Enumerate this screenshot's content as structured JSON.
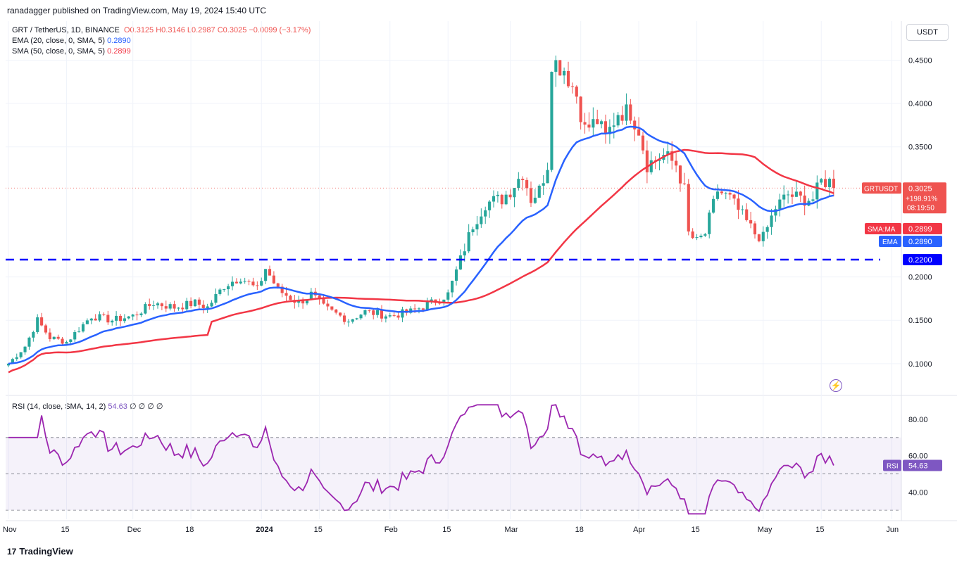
{
  "header": {
    "published": "ranadagger published on TradingView.com, May 19, 2024 15:40 UTC"
  },
  "legend": {
    "symbol": "GRT / TetherUS, 1D, BINANCE",
    "open": "O0.3125",
    "high": "H0.3146",
    "low": "L0.2987",
    "close": "C0.3025",
    "change": "−0.0099 (−3.17%)",
    "ema_label": "EMA (20, close, 0, SMA, 5)",
    "ema_value": "0.2890",
    "sma_label": "SMA (50, close, 0, SMA, 5)",
    "sma_value": "0.2899"
  },
  "rsi_legend": {
    "label": "RSI (14, close, SMA, 14, 2)",
    "value": "54.63",
    "extra": "∅ ∅ ∅ ∅"
  },
  "currency": "USDT",
  "footer": {
    "brand": "TradingView",
    "logo_mark": "17"
  },
  "colors": {
    "up": "#26a69a",
    "down": "#ef5350",
    "ema": "#2962ff",
    "sma": "#f23645",
    "rsi": "#9c27b0",
    "hline": "#0000ff"
  },
  "tags": {
    "symbol": "GRTUSDT",
    "price": "0.3025",
    "pct": "+198.91%",
    "countdown": "08:19:50",
    "smama": "SMA:MA",
    "smama_value": "0.2899",
    "ema": "EMA",
    "ema_value": "0.2890",
    "hline_value": "0.2200",
    "rsi": "RSI",
    "rsi_value": "54.63"
  },
  "chart_data": [
    {
      "type": "candlestick",
      "title": "GRT / TetherUS, 1D, BINANCE",
      "ylim": [
        0.065,
        0.495
      ],
      "y_ticks": [
        0.45,
        0.4,
        0.35,
        0.2,
        0.15,
        0.1
      ],
      "y_tick_labels": [
        "0.4500",
        "0.4000",
        "0.3500",
        "0.2000",
        "0.1500",
        "0.1000"
      ],
      "x_ticks": [
        {
          "day": 0,
          "label": "Nov"
        },
        {
          "day": 14,
          "label": "15"
        },
        {
          "day": 30,
          "label": "Dec"
        },
        {
          "day": 44,
          "label": "18"
        },
        {
          "day": 61,
          "label": "2024"
        },
        {
          "day": 75,
          "label": "15"
        },
        {
          "day": 92,
          "label": "Feb"
        },
        {
          "day": 106,
          "label": "15"
        },
        {
          "day": 121,
          "label": "Mar"
        },
        {
          "day": 138,
          "label": "18"
        },
        {
          "day": 152,
          "label": "Apr"
        },
        {
          "day": 166,
          "label": "15"
        },
        {
          "day": 182,
          "label": "May"
        },
        {
          "day": 196,
          "label": "15"
        },
        {
          "day": 213,
          "label": "Jun"
        }
      ],
      "days": 200,
      "support_level": 0.22,
      "close_anchors": [
        [
          0,
          0.1
        ],
        [
          4,
          0.12
        ],
        [
          7,
          0.15
        ],
        [
          10,
          0.13
        ],
        [
          14,
          0.125
        ],
        [
          17,
          0.14
        ],
        [
          20,
          0.155
        ],
        [
          25,
          0.15
        ],
        [
          30,
          0.155
        ],
        [
          35,
          0.17
        ],
        [
          40,
          0.165
        ],
        [
          45,
          0.17
        ],
        [
          48,
          0.165
        ],
        [
          52,
          0.19
        ],
        [
          56,
          0.2
        ],
        [
          60,
          0.185
        ],
        [
          62,
          0.21
        ],
        [
          65,
          0.185
        ],
        [
          70,
          0.17
        ],
        [
          73,
          0.18
        ],
        [
          76,
          0.165
        ],
        [
          82,
          0.15
        ],
        [
          86,
          0.16
        ],
        [
          92,
          0.155
        ],
        [
          97,
          0.16
        ],
        [
          102,
          0.17
        ],
        [
          106,
          0.18
        ],
        [
          109,
          0.22
        ],
        [
          112,
          0.26
        ],
        [
          115,
          0.285
        ],
        [
          119,
          0.29
        ],
        [
          121,
          0.3
        ],
        [
          124,
          0.32
        ],
        [
          126,
          0.29
        ],
        [
          128,
          0.3
        ],
        [
          130,
          0.33
        ],
        [
          131,
          0.45
        ],
        [
          134,
          0.44
        ],
        [
          137,
          0.41
        ],
        [
          139,
          0.37
        ],
        [
          142,
          0.38
        ],
        [
          144,
          0.36
        ],
        [
          147,
          0.39
        ],
        [
          150,
          0.39
        ],
        [
          152,
          0.37
        ],
        [
          154,
          0.33
        ],
        [
          158,
          0.34
        ],
        [
          161,
          0.33
        ],
        [
          163,
          0.3
        ],
        [
          164,
          0.25
        ],
        [
          166,
          0.24
        ],
        [
          168,
          0.25
        ],
        [
          171,
          0.3
        ],
        [
          174,
          0.29
        ],
        [
          177,
          0.27
        ],
        [
          180,
          0.25
        ],
        [
          182,
          0.245
        ],
        [
          185,
          0.28
        ],
        [
          188,
          0.295
        ],
        [
          191,
          0.29
        ],
        [
          194,
          0.29
        ],
        [
          196,
          0.31
        ],
        [
          198,
          0.31
        ],
        [
          199,
          0.3025
        ]
      ],
      "ema_label": "EMA (20, close, 0, SMA, 5)",
      "sma_label": "SMA (50, close, 0, SMA, 5)"
    },
    {
      "type": "line",
      "title": "RSI (14, close, SMA, 14, 2)",
      "ylim": [
        25,
        92
      ],
      "y_ticks": [
        80,
        60,
        40
      ],
      "y_tick_labels": [
        "80.00",
        "60.00",
        "40.00"
      ],
      "band": [
        30,
        70
      ],
      "last_value": 54.63
    }
  ]
}
